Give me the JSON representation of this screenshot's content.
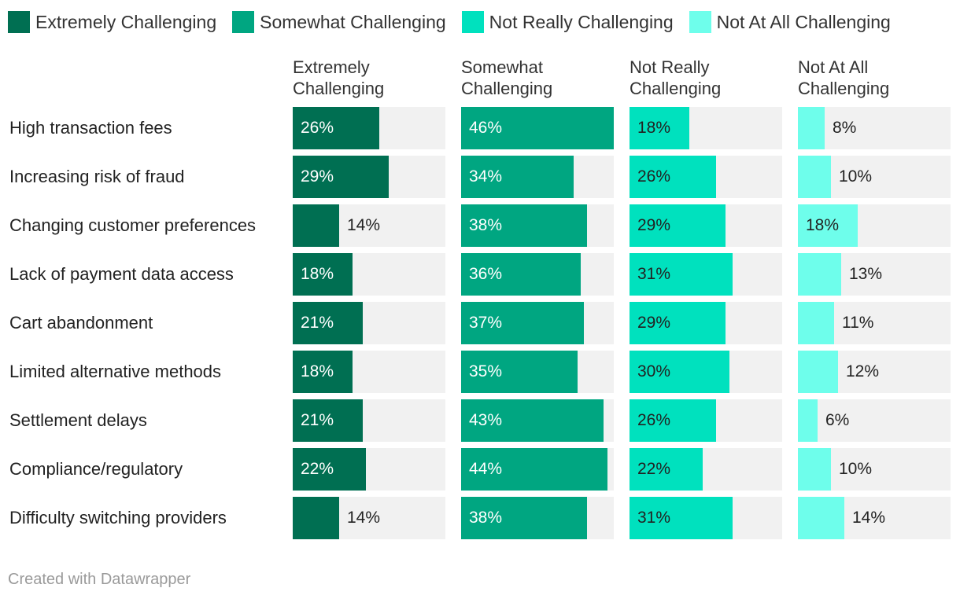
{
  "legend": [
    {
      "label": "Extremely Challenging",
      "color": "#006f52"
    },
    {
      "label": "Somewhat Challenging",
      "color": "#00a681"
    },
    {
      "label": "Not Really Challenging",
      "color": "#00e1be"
    },
    {
      "label": "Not At All Challenging",
      "color": "#6efeeb"
    }
  ],
  "columns": {
    "c0": {
      "line1": "Extremely",
      "line2": "Challenging"
    },
    "c1": {
      "line1": "Somewhat",
      "line2": "Challenging"
    },
    "c2": {
      "line1": "Not Really",
      "line2": "Challenging"
    },
    "c3": {
      "line1": "Not At All",
      "line2": "Challenging"
    }
  },
  "chart_data": {
    "type": "bar",
    "layout": "small-multiples",
    "orientation": "horizontal",
    "categories": [
      "High transaction fees",
      "Increasing risk of fraud",
      "Changing customer preferences",
      "Lack of payment data access",
      "Cart abandonment",
      "Limited alternative methods",
      "Settlement delays",
      "Compliance/regulatory",
      "Difficulty switching providers"
    ],
    "xlim": [
      0,
      46
    ],
    "series": [
      {
        "name": "Extremely Challenging",
        "values": [
          26,
          29,
          14,
          18,
          21,
          18,
          21,
          22,
          14
        ]
      },
      {
        "name": "Somewhat Challenging",
        "values": [
          46,
          34,
          38,
          36,
          37,
          35,
          43,
          44,
          38
        ]
      },
      {
        "name": "Not Really Challenging",
        "values": [
          18,
          26,
          29,
          31,
          29,
          30,
          26,
          22,
          31
        ]
      },
      {
        "name": "Not At All Challenging",
        "values": [
          8,
          10,
          18,
          13,
          11,
          12,
          6,
          10,
          14
        ]
      }
    ],
    "unit": "%"
  },
  "footer": {
    "credit": "Created with Datawrapper"
  }
}
